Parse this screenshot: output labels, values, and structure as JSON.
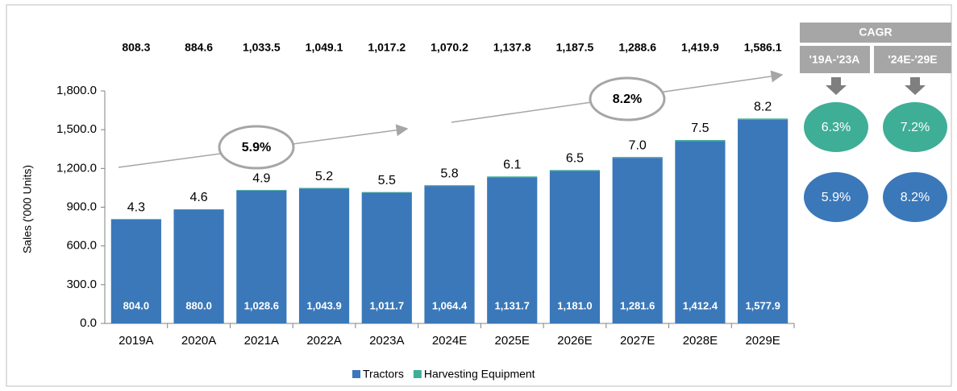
{
  "chart_data": {
    "type": "stacked_bar",
    "y_label": "Sales ('000 Units)",
    "categories": [
      "2019A",
      "2020A",
      "2021A",
      "2022A",
      "2023A",
      "2024E",
      "2025E",
      "2026E",
      "2027E",
      "2028E",
      "2029E"
    ],
    "series": [
      {
        "name": "Tractors",
        "color": "#3a78b9",
        "values": [
          804.0,
          880.0,
          1028.6,
          1043.9,
          1011.7,
          1064.4,
          1131.7,
          1181.0,
          1281.6,
          1412.4,
          1577.9
        ],
        "value_labels": [
          "804.0",
          "880.0",
          "1,028.6",
          "1,043.9",
          "1,011.7",
          "1,064.4",
          "1,131.7",
          "1,181.0",
          "1,281.6",
          "1,412.4",
          "1,577.9"
        ]
      },
      {
        "name": "Harvesting Equipment",
        "color": "#3fae96",
        "values": [
          4.3,
          4.6,
          4.9,
          5.2,
          5.5,
          5.8,
          6.1,
          6.5,
          7.0,
          7.5,
          8.2
        ],
        "value_labels": [
          "4.3",
          "4.6",
          "4.9",
          "5.2",
          "5.5",
          "5.8",
          "6.1",
          "6.5",
          "7.0",
          "7.5",
          "8.2"
        ]
      }
    ],
    "totals": [
      808.3,
      884.6,
      1033.5,
      1049.1,
      1017.2,
      1070.2,
      1137.8,
      1187.5,
      1288.6,
      1419.9,
      1586.1
    ],
    "total_labels": [
      "808.3",
      "884.6",
      "1,033.5",
      "1,049.1",
      "1,017.2",
      "1,070.2",
      "1,137.8",
      "1,187.5",
      "1,288.6",
      "1,419.9",
      "1,586.1"
    ],
    "ylim": [
      0,
      1800
    ],
    "yticks": [
      {
        "value": 0,
        "label": "0.0"
      },
      {
        "value": 300,
        "label": "300.0"
      },
      {
        "value": 600,
        "label": "600.0"
      },
      {
        "value": 900,
        "label": "900.0"
      },
      {
        "value": 1200,
        "label": "1,200.0"
      },
      {
        "value": 1500,
        "label": "1,500.0"
      },
      {
        "value": 1800,
        "label": "1,800.0"
      }
    ],
    "annotations": [
      "5.9%",
      "8.2%"
    ],
    "cagr": {
      "title": "CAGR",
      "periods": [
        "'19A-'23A",
        "'24E-'29E"
      ],
      "harvesting": [
        "6.3%",
        "7.2%"
      ],
      "tractors": [
        "5.9%",
        "8.2%"
      ]
    }
  }
}
